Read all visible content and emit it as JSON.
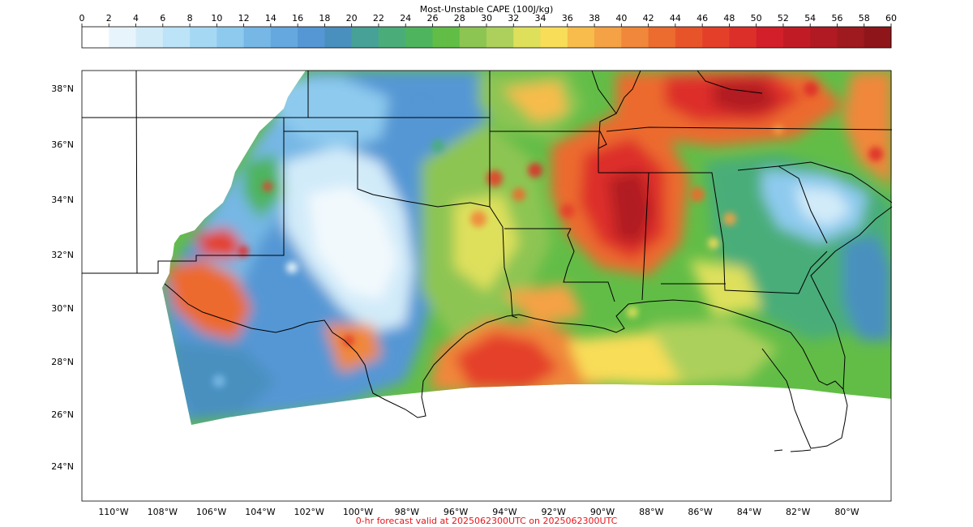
{
  "colorbar": {
    "title": "Most-Unstable CAPE (100J/kg)",
    "ticks": [
      "0",
      "2",
      "4",
      "6",
      "8",
      "10",
      "12",
      "14",
      "16",
      "18",
      "20",
      "22",
      "24",
      "26",
      "28",
      "30",
      "32",
      "34",
      "36",
      "38",
      "40",
      "42",
      "44",
      "46",
      "48",
      "50",
      "52",
      "54",
      "56",
      "58",
      "60"
    ],
    "colors": [
      "#ffffff",
      "#e8f4fc",
      "#d2ebf9",
      "#bce3f7",
      "#a5d8f3",
      "#8ecaee",
      "#76b7e5",
      "#64a8df",
      "#5497d4",
      "#4a90bf",
      "#47a196",
      "#4aad79",
      "#4fb45e",
      "#62bd47",
      "#8dc553",
      "#acd05b",
      "#dee05c",
      "#f8dd59",
      "#f7bc4b",
      "#f4a245",
      "#f0873a",
      "#ec6b2f",
      "#e8542a",
      "#e44029",
      "#dd2f2a",
      "#d21f2a",
      "#c11c25",
      "#b11a23",
      "#9e1a1f",
      "#8e161b"
    ]
  },
  "map": {
    "lat_labels": [
      "38°N",
      "36°N",
      "34°N",
      "32°N",
      "30°N",
      "28°N",
      "26°N",
      "24°N"
    ],
    "lon_labels": [
      "110°W",
      "108°W",
      "106°W",
      "104°W",
      "102°W",
      "100°W",
      "98°W",
      "96°W",
      "94°W",
      "92°W",
      "90°W",
      "88°W",
      "86°W",
      "84°W",
      "82°W",
      "80°W"
    ]
  },
  "footer": {
    "text": "0-hr forecast valid at 2025062300UTC on 2025062300UTC",
    "color": "#e8151b"
  }
}
